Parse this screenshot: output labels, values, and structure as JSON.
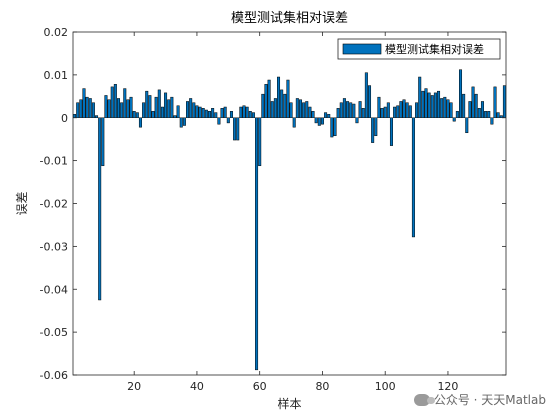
{
  "chart_data": {
    "type": "bar",
    "title": "模型测试集相对误差",
    "xlabel": "样本",
    "ylabel": "误差",
    "legend": {
      "label": "模型测试集相对误差",
      "placement": "top-right"
    },
    "bar_color": "#0072BD",
    "xlim": [
      0.5,
      138.5
    ],
    "ylim": [
      -0.06,
      0.02
    ],
    "xticks": [
      20,
      40,
      60,
      80,
      100,
      120
    ],
    "yticks": [
      -0.06,
      -0.05,
      -0.04,
      -0.03,
      -0.02,
      -0.01,
      0,
      0.01,
      0.02
    ],
    "ytick_labels": [
      "-0.06",
      "-0.05",
      "-0.04",
      "-0.03",
      "-0.02",
      "-0.01",
      "0",
      "0.01",
      "0.02"
    ],
    "x": [
      1,
      2,
      3,
      4,
      5,
      6,
      7,
      8,
      9,
      10,
      11,
      12,
      13,
      14,
      15,
      16,
      17,
      18,
      19,
      20,
      21,
      22,
      23,
      24,
      25,
      26,
      27,
      28,
      29,
      30,
      31,
      32,
      33,
      34,
      35,
      36,
      37,
      38,
      39,
      40,
      41,
      42,
      43,
      44,
      45,
      46,
      47,
      48,
      49,
      50,
      51,
      52,
      53,
      54,
      55,
      56,
      57,
      58,
      59,
      60,
      61,
      62,
      63,
      64,
      65,
      66,
      67,
      68,
      69,
      70,
      71,
      72,
      73,
      74,
      75,
      76,
      77,
      78,
      79,
      80,
      81,
      82,
      83,
      84,
      85,
      86,
      87,
      88,
      89,
      90,
      91,
      92,
      93,
      94,
      95,
      96,
      97,
      98,
      99,
      100,
      101,
      102,
      103,
      104,
      105,
      106,
      107,
      108,
      109,
      110,
      111,
      112,
      113,
      114,
      115,
      116,
      117,
      118,
      119,
      120,
      121,
      122,
      123,
      124,
      125,
      126,
      127,
      128,
      129,
      130,
      131,
      132,
      133,
      134,
      135,
      136,
      137,
      138
    ],
    "values": [
      0.0008,
      0.0035,
      0.0042,
      0.0068,
      0.0048,
      0.0045,
      0.0035,
      0.0005,
      -0.0425,
      -0.0112,
      0.0052,
      0.0042,
      0.0072,
      0.0078,
      0.0045,
      0.0035,
      0.0068,
      0.0042,
      0.0048,
      0.0015,
      0.0012,
      -0.0022,
      0.0035,
      0.0062,
      0.0052,
      0.0015,
      0.0048,
      0.0065,
      0.0025,
      0.0058,
      0.0042,
      0.0048,
      0.0005,
      0.0028,
      -0.0022,
      -0.0018,
      0.0038,
      0.0045,
      0.0035,
      0.0028,
      0.0025,
      0.0022,
      0.0018,
      0.0015,
      0.0022,
      0.0012,
      -0.0015,
      0.0022,
      0.0025,
      -0.0012,
      0.0015,
      -0.0052,
      -0.0052,
      0.0025,
      0.0028,
      0.0025,
      0.0015,
      0.0012,
      -0.0588,
      -0.0112,
      0.0055,
      0.0078,
      0.0088,
      0.0038,
      0.0045,
      0.0095,
      0.0065,
      0.0055,
      0.0088,
      0.0035,
      -0.0022,
      0.0045,
      0.0042,
      0.0035,
      0.0038,
      0.0025,
      0.0015,
      -0.0012,
      -0.0018,
      -0.0015,
      0.0012,
      0.0008,
      -0.0045,
      -0.0042,
      0.0022,
      0.0035,
      0.0045,
      0.0038,
      0.0035,
      0.0032,
      -0.0012,
      0.0038,
      0.0022,
      0.0105,
      0.0075,
      -0.0058,
      -0.0042,
      0.0048,
      0.0022,
      0.0025,
      0.0035,
      -0.0065,
      0.0025,
      0.0028,
      0.0038,
      0.0042,
      0.0035,
      0.0028,
      -0.0278,
      0.0035,
      0.0095,
      0.0062,
      0.0068,
      0.0058,
      0.0052,
      0.0058,
      0.0062,
      0.0045,
      0.0048,
      0.0042,
      0.0035,
      -0.0008,
      0.0015,
      0.0112,
      0.0055,
      -0.0035,
      0.0038,
      0.0072,
      0.0055,
      0.0022,
      0.0038,
      0.0015,
      0.0015,
      -0.0015,
      0.0072,
      0.0012,
      0.0005,
      0.0075
    ],
    "grid": false,
    "watermark": "公众号 · 天天Matlab"
  }
}
